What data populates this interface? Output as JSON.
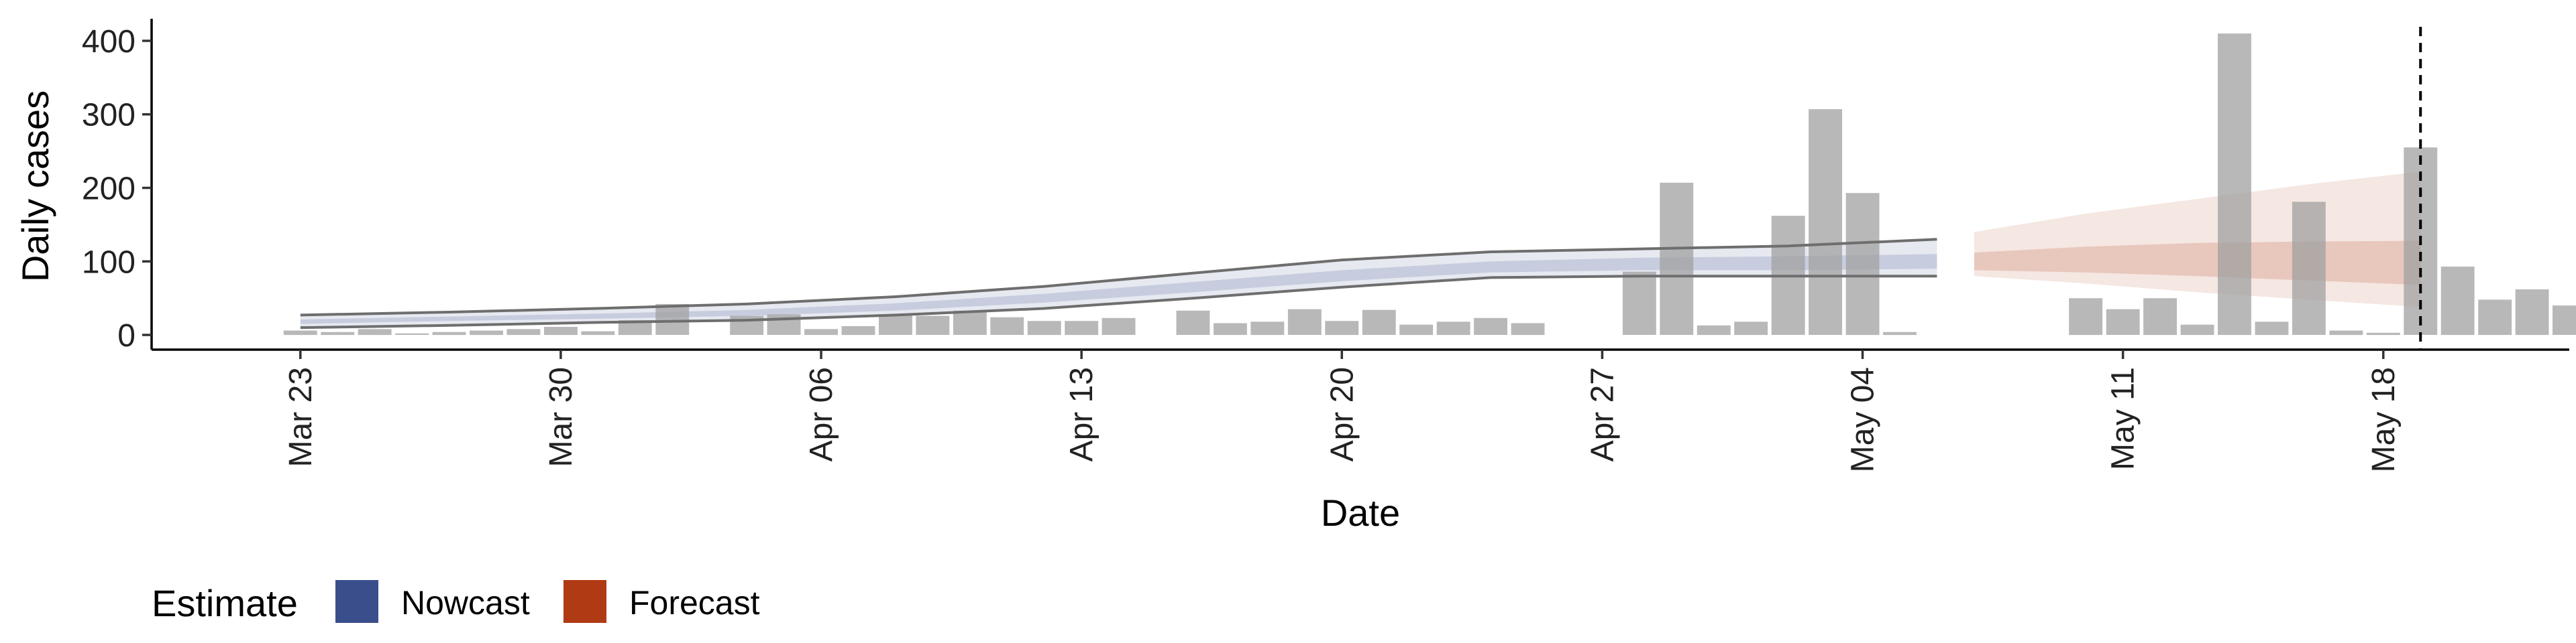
{
  "chart_data": {
    "type": "bar",
    "xlabel": "Date",
    "ylabel": "Daily cases",
    "ylim": [
      -20,
      430
    ],
    "y_ticks": [
      0,
      100,
      200,
      300,
      400
    ],
    "x_ticks": [
      {
        "date": "2020-03-23",
        "label": "Mar 23"
      },
      {
        "date": "2020-03-30",
        "label": "Mar 30"
      },
      {
        "date": "2020-04-06",
        "label": "Apr 06"
      },
      {
        "date": "2020-04-13",
        "label": "Apr 13"
      },
      {
        "date": "2020-04-20",
        "label": "Apr 20"
      },
      {
        "date": "2020-04-27",
        "label": "Apr 27"
      },
      {
        "date": "2020-05-04",
        "label": "May 04"
      },
      {
        "date": "2020-05-11",
        "label": "May 11"
      },
      {
        "date": "2020-05-18",
        "label": "May 18"
      }
    ],
    "x_range": [
      "2020-03-19",
      "2020-05-23"
    ],
    "grid": false,
    "reference_line": {
      "date": "2020-05-19",
      "style": "dashed"
    },
    "bars": {
      "color": "#a0a0a0",
      "start_date": "2020-03-23",
      "values": [
        6,
        4,
        8,
        2,
        4,
        6,
        8,
        11,
        5,
        20,
        42,
        0,
        26,
        28,
        8,
        12,
        28,
        26,
        33,
        24,
        19,
        19,
        23,
        0,
        33,
        16,
        18,
        35,
        19,
        34,
        14,
        18,
        23,
        16,
        0,
        0,
        86,
        207,
        13,
        18,
        162,
        307,
        193,
        4,
        0,
        0,
        0,
        0,
        50,
        35,
        50,
        14,
        410,
        18,
        181,
        6,
        3,
        255,
        93,
        48,
        62,
        40
      ]
    },
    "legend": {
      "title": "Estimate",
      "position": "bottom-left",
      "entries": [
        {
          "label": "Nowcast",
          "color": "#3a4e8c"
        },
        {
          "label": "Forecast",
          "color": "#b03a14"
        }
      ]
    },
    "series": [
      {
        "name": "Nowcast",
        "color": "#3a4e8c",
        "dates": [
          "2020-03-23",
          "2020-03-27",
          "2020-03-31",
          "2020-04-04",
          "2020-04-08",
          "2020-04-12",
          "2020-04-16",
          "2020-04-20",
          "2020-04-24",
          "2020-04-28",
          "2020-05-02",
          "2020-05-06"
        ],
        "median": [
          18,
          22,
          26,
          30,
          38,
          50,
          65,
          80,
          93,
          97,
          98,
          100
        ],
        "inner_low": [
          15,
          19,
          22,
          26,
          33,
          44,
          58,
          73,
          85,
          88,
          88,
          90
        ],
        "inner_high": [
          21,
          25,
          29,
          34,
          43,
          56,
          72,
          88,
          100,
          105,
          107,
          110
        ],
        "outer_low": [
          10,
          13,
          17,
          20,
          27,
          36,
          50,
          65,
          78,
          80,
          80,
          80
        ],
        "outer_high": [
          27,
          31,
          36,
          42,
          52,
          66,
          84,
          102,
          113,
          117,
          121,
          130
        ]
      },
      {
        "name": "Forecast",
        "color": "#b03a14",
        "dates": [
          "2020-05-07",
          "2020-05-10",
          "2020-05-13",
          "2020-05-16",
          "2020-05-19"
        ],
        "median": [
          100,
          102,
          103,
          101,
          100
        ],
        "inner_low": [
          88,
          85,
          80,
          74,
          68
        ],
        "inner_high": [
          112,
          120,
          125,
          127,
          128
        ],
        "outer_low": [
          80,
          70,
          58,
          48,
          38
        ],
        "outer_high": [
          140,
          165,
          185,
          205,
          222
        ]
      }
    ]
  }
}
